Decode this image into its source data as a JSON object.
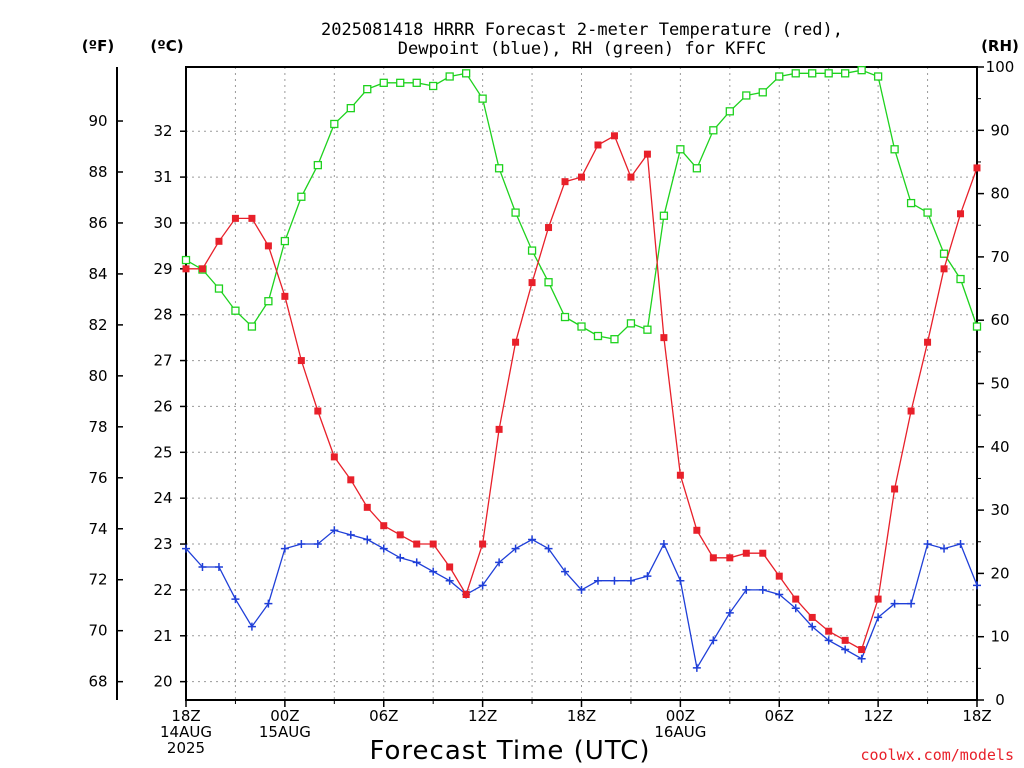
{
  "chart_data": {
    "type": "line",
    "title_line1": "2025081418 HRRR Forecast 2-meter Temperature (red),",
    "title_line2": "Dewpoint (blue), RH (green) for KFFC",
    "xlabel": "Forecast Time (UTC)",
    "credit": "coolwx.com/models",
    "units": {
      "fahrenheit": "(ºF)",
      "celsius": "(ºC)",
      "rh": "(RH)"
    },
    "x_range": [
      0,
      48
    ],
    "y_celsius_range": [
      19.6,
      33.4
    ],
    "y_rh_range": [
      0,
      100
    ],
    "x_ticks": [
      {
        "x": 0,
        "lines": [
          "18Z",
          "14AUG",
          "2025"
        ]
      },
      {
        "x": 6,
        "lines": [
          "00Z",
          "15AUG"
        ]
      },
      {
        "x": 12,
        "lines": [
          "06Z"
        ]
      },
      {
        "x": 18,
        "lines": [
          "12Z"
        ]
      },
      {
        "x": 24,
        "lines": [
          "18Z"
        ]
      },
      {
        "x": 30,
        "lines": [
          "00Z",
          "16AUG"
        ]
      },
      {
        "x": 36,
        "lines": [
          "06Z"
        ]
      },
      {
        "x": 42,
        "lines": [
          "12Z"
        ]
      },
      {
        "x": 48,
        "lines": [
          "18Z"
        ]
      }
    ],
    "y_celsius_ticks": [
      20,
      21,
      22,
      23,
      24,
      25,
      26,
      27,
      28,
      29,
      30,
      31,
      32
    ],
    "y_fahrenheit_ticks": [
      68,
      70,
      72,
      74,
      76,
      78,
      80,
      82,
      84,
      86,
      88,
      90
    ],
    "y_rh_ticks": [
      0,
      10,
      20,
      30,
      40,
      50,
      60,
      70,
      80,
      90,
      100
    ],
    "series": [
      {
        "key": "temperature",
        "color": "#e8202a",
        "marker": "filled-square",
        "unit": "C",
        "values": [
          29.0,
          29.0,
          29.6,
          30.1,
          30.1,
          29.5,
          28.4,
          27.0,
          25.9,
          24.9,
          24.4,
          23.8,
          23.4,
          23.2,
          23.0,
          23.0,
          22.5,
          21.9,
          23.0,
          25.5,
          27.4,
          28.7,
          29.9,
          30.9,
          31.0,
          31.7,
          31.9,
          31.0,
          31.5,
          27.5,
          24.5,
          23.3,
          22.7,
          22.7,
          22.8,
          22.8,
          22.3,
          21.8,
          21.4,
          21.1,
          20.9,
          20.7,
          21.8,
          24.2,
          25.9,
          27.4,
          29.0,
          30.2,
          31.2
        ]
      },
      {
        "key": "dewpoint",
        "color": "#1f3fd8",
        "marker": "plus",
        "unit": "C",
        "values": [
          22.9,
          22.5,
          22.5,
          21.8,
          21.2,
          21.7,
          22.9,
          23.0,
          23.0,
          23.3,
          23.2,
          23.1,
          22.9,
          22.7,
          22.6,
          22.4,
          22.2,
          21.9,
          22.1,
          22.6,
          22.9,
          23.1,
          22.9,
          22.4,
          22.0,
          22.2,
          22.2,
          22.2,
          22.3,
          23.0,
          22.2,
          20.3,
          20.9,
          21.5,
          22.0,
          22.0,
          21.9,
          21.6,
          21.2,
          20.9,
          20.7,
          20.5,
          21.4,
          21.7,
          21.7,
          23.0,
          22.9,
          23.0,
          22.1
        ]
      },
      {
        "key": "rh",
        "color": "#1ed21e",
        "marker": "hollow-square",
        "unit": "%",
        "values": [
          69.5,
          68.0,
          65.0,
          61.5,
          59.0,
          63.0,
          72.5,
          79.5,
          84.5,
          91.0,
          93.5,
          96.5,
          97.5,
          97.5,
          97.5,
          97.0,
          98.5,
          99.0,
          95.0,
          84.0,
          77.0,
          71.0,
          66.0,
          60.5,
          59.0,
          57.5,
          57.0,
          59.5,
          58.5,
          76.5,
          87.0,
          84.0,
          90.0,
          93.0,
          95.5,
          96.0,
          98.5,
          99.0,
          99.0,
          99.0,
          99.0,
          99.5,
          98.5,
          87.0,
          78.5,
          77.0,
          70.5,
          66.5,
          59.0
        ]
      }
    ]
  }
}
